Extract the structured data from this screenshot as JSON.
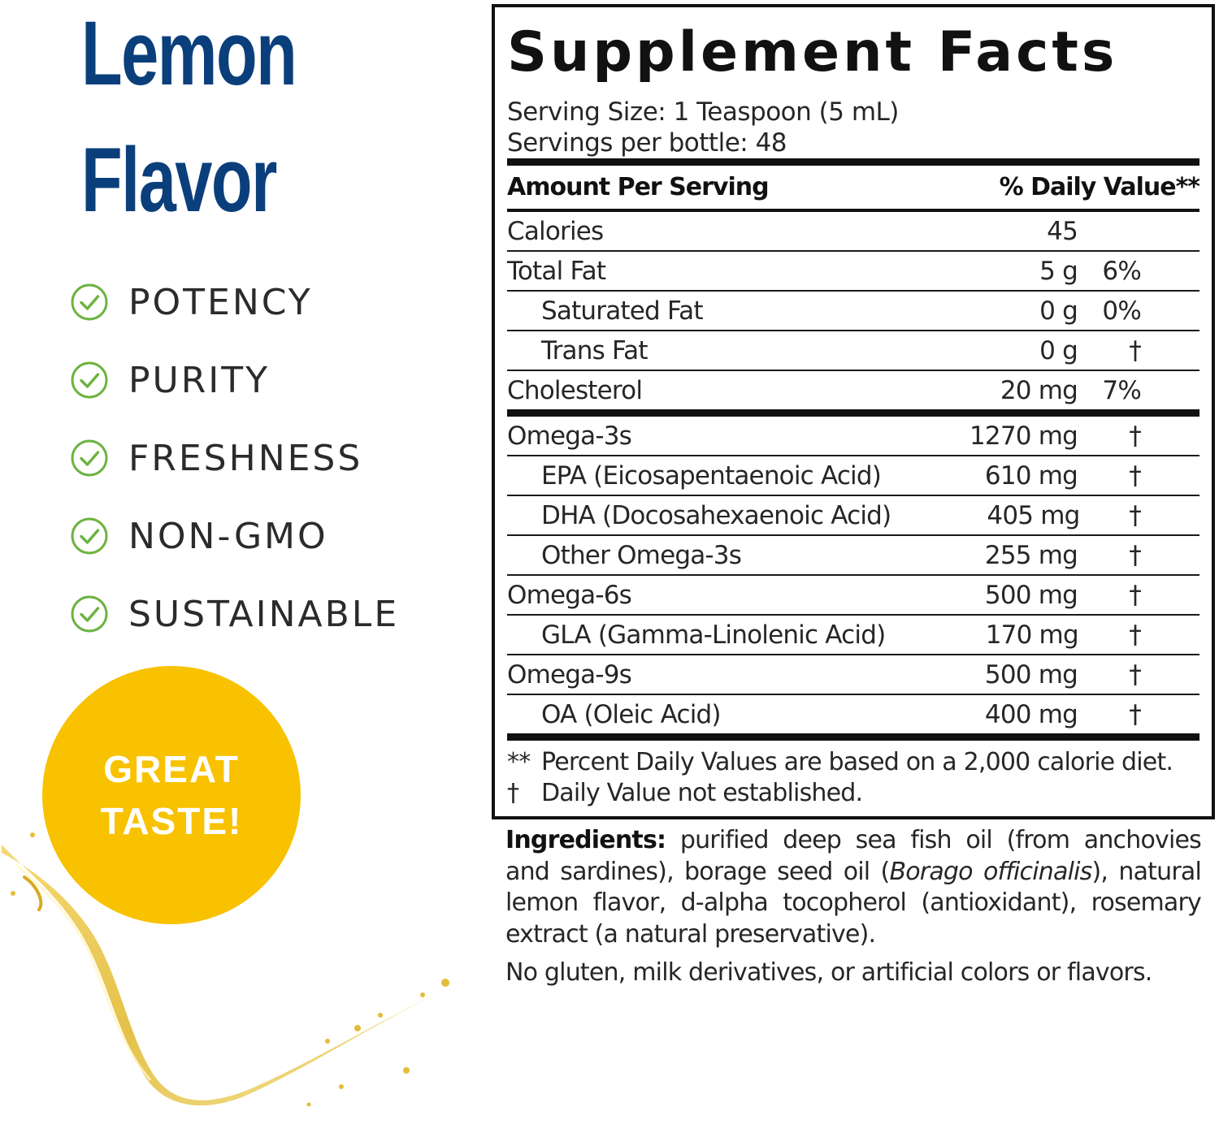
{
  "product": {
    "title_line1": "Lemon",
    "title_line2": "Flavor",
    "brand_color": "#0b3f7c"
  },
  "features": [
    {
      "label": "POTENCY",
      "icon": "check-circle-icon"
    },
    {
      "label": "PURITY",
      "icon": "check-circle-icon"
    },
    {
      "label": "FRESHNESS",
      "icon": "check-circle-icon"
    },
    {
      "label": "NON-GMO",
      "icon": "check-circle-icon"
    },
    {
      "label": "SUSTAINABLE",
      "icon": "check-circle-icon"
    }
  ],
  "check_color": "#6cb33f",
  "badge": {
    "line1": "GREAT",
    "line2": "TASTE!",
    "color": "#f8c200"
  },
  "facts": {
    "title": "Supplement Facts",
    "serving_size": "Serving Size: 1 Teaspoon (5 mL)",
    "servings_per": "Servings per bottle: 48",
    "header_left": "Amount Per Serving",
    "header_right": "% Daily Value**",
    "rows": [
      {
        "name": "Calories",
        "amount": "45",
        "dv": ""
      },
      {
        "name": "Total Fat",
        "amount": "5 g",
        "dv": "6%"
      },
      {
        "name": "Saturated Fat",
        "amount": "0 g",
        "dv": "0%"
      },
      {
        "name": "Trans Fat",
        "amount": "0 g",
        "dv": "†"
      },
      {
        "name": "Cholesterol",
        "amount": "20 mg",
        "dv": "7%"
      },
      {
        "name": "Omega-3s",
        "amount": "1270 mg",
        "dv": "†"
      },
      {
        "name": "EPA (Eicosapentaenoic Acid)",
        "amount": "610 mg",
        "dv": "†"
      },
      {
        "name": "DHA (Docosahexaenoic Acid)",
        "amount": "405 mg",
        "dv": "†"
      },
      {
        "name": "Other Omega-3s",
        "amount": "255 mg",
        "dv": "†"
      },
      {
        "name": "Omega-6s",
        "amount": "500 mg",
        "dv": "†"
      },
      {
        "name": "GLA (Gamma-Linolenic Acid)",
        "amount": "170 mg",
        "dv": "†"
      },
      {
        "name": "Omega-9s",
        "amount": "500 mg",
        "dv": "†"
      },
      {
        "name": "OA (Oleic Acid)",
        "amount": "400 mg",
        "dv": "†"
      }
    ],
    "footnote1_mark": "**",
    "footnote1_text": "Percent Daily Values are based on a 2,000 calorie diet.",
    "footnote2_mark": "†",
    "footnote2_text": "Daily Value not established."
  },
  "ingredients": {
    "label": "Ingredients:",
    "text_before": " purified deep sea fish oil (from anchovies and sardines), borage seed oil (",
    "italic": "Borago officinalis",
    "text_after": "), natural lemon flavor, d-alpha tocopherol (antioxidant), rosemary extract (a natural preservative).",
    "note": "No gluten, milk derivatives, or artificial colors or flavors."
  }
}
